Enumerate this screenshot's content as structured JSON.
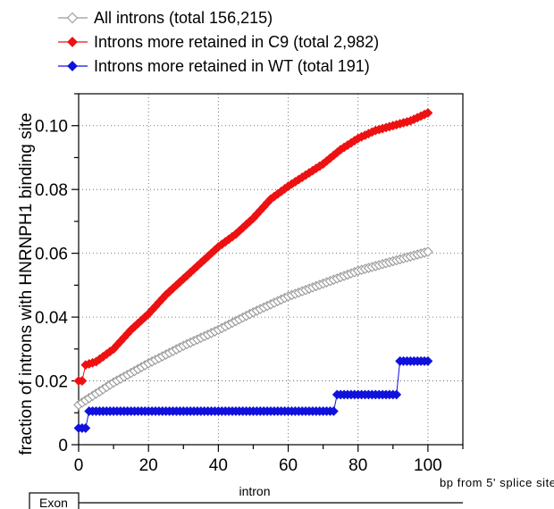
{
  "chart_data": {
    "type": "line",
    "title": "",
    "ylabel": "fraction of introns with HNRNPH1 binding site",
    "xlabel": "bp from 5' splice site",
    "xlim": [
      0,
      110
    ],
    "ylim": [
      0,
      0.11
    ],
    "x_ticks": [
      0,
      20,
      40,
      60,
      80,
      100
    ],
    "x_tick_labels": [
      "0",
      "20",
      "40",
      "60",
      "80",
      "100"
    ],
    "y_ticks": [
      0,
      0.02,
      0.04,
      0.06,
      0.08,
      0.1
    ],
    "y_tick_labels": [
      "0",
      "0.02",
      "0.04",
      "0.06",
      "0.08",
      "0.10"
    ],
    "grid": true,
    "legend_position": "top",
    "colors": {
      "all": "#999999",
      "c9": "#ee1111",
      "wt": "#1111dd"
    },
    "series": [
      {
        "name": "All introns (total 156,215)",
        "color": "#999999",
        "marker": "diamond-open",
        "x": [
          0,
          10,
          20,
          30,
          40,
          50,
          60,
          70,
          80,
          90,
          100
        ],
        "values": [
          0.0125,
          0.0195,
          0.0255,
          0.031,
          0.036,
          0.0415,
          0.0465,
          0.0505,
          0.0545,
          0.0575,
          0.0605
        ]
      },
      {
        "name": "Introns more retained in C9 (total 2,982)",
        "color": "#ee1111",
        "marker": "diamond-filled",
        "x": [
          0,
          1,
          2,
          5,
          10,
          15,
          20,
          25,
          30,
          35,
          40,
          45,
          50,
          55,
          60,
          65,
          70,
          75,
          80,
          85,
          90,
          95,
          100
        ],
        "values": [
          0.02,
          0.02,
          0.025,
          0.026,
          0.03,
          0.036,
          0.041,
          0.047,
          0.052,
          0.057,
          0.062,
          0.066,
          0.071,
          0.077,
          0.081,
          0.0845,
          0.088,
          0.0925,
          0.096,
          0.0985,
          0.1,
          0.1015,
          0.104
        ]
      },
      {
        "name": "Introns more retained in WT (total 191)",
        "color": "#1111dd",
        "marker": "diamond-filled",
        "steps": [
          {
            "x_start": 0,
            "x_end": 2,
            "value": 0.0052
          },
          {
            "x_start": 3,
            "x_end": 73,
            "value": 0.0105
          },
          {
            "x_start": 74,
            "x_end": 91,
            "value": 0.0157
          },
          {
            "x_start": 92,
            "x_end": 100,
            "value": 0.0262
          }
        ]
      }
    ]
  },
  "track": {
    "exon_label": "Exon",
    "intron_label": "intron"
  }
}
